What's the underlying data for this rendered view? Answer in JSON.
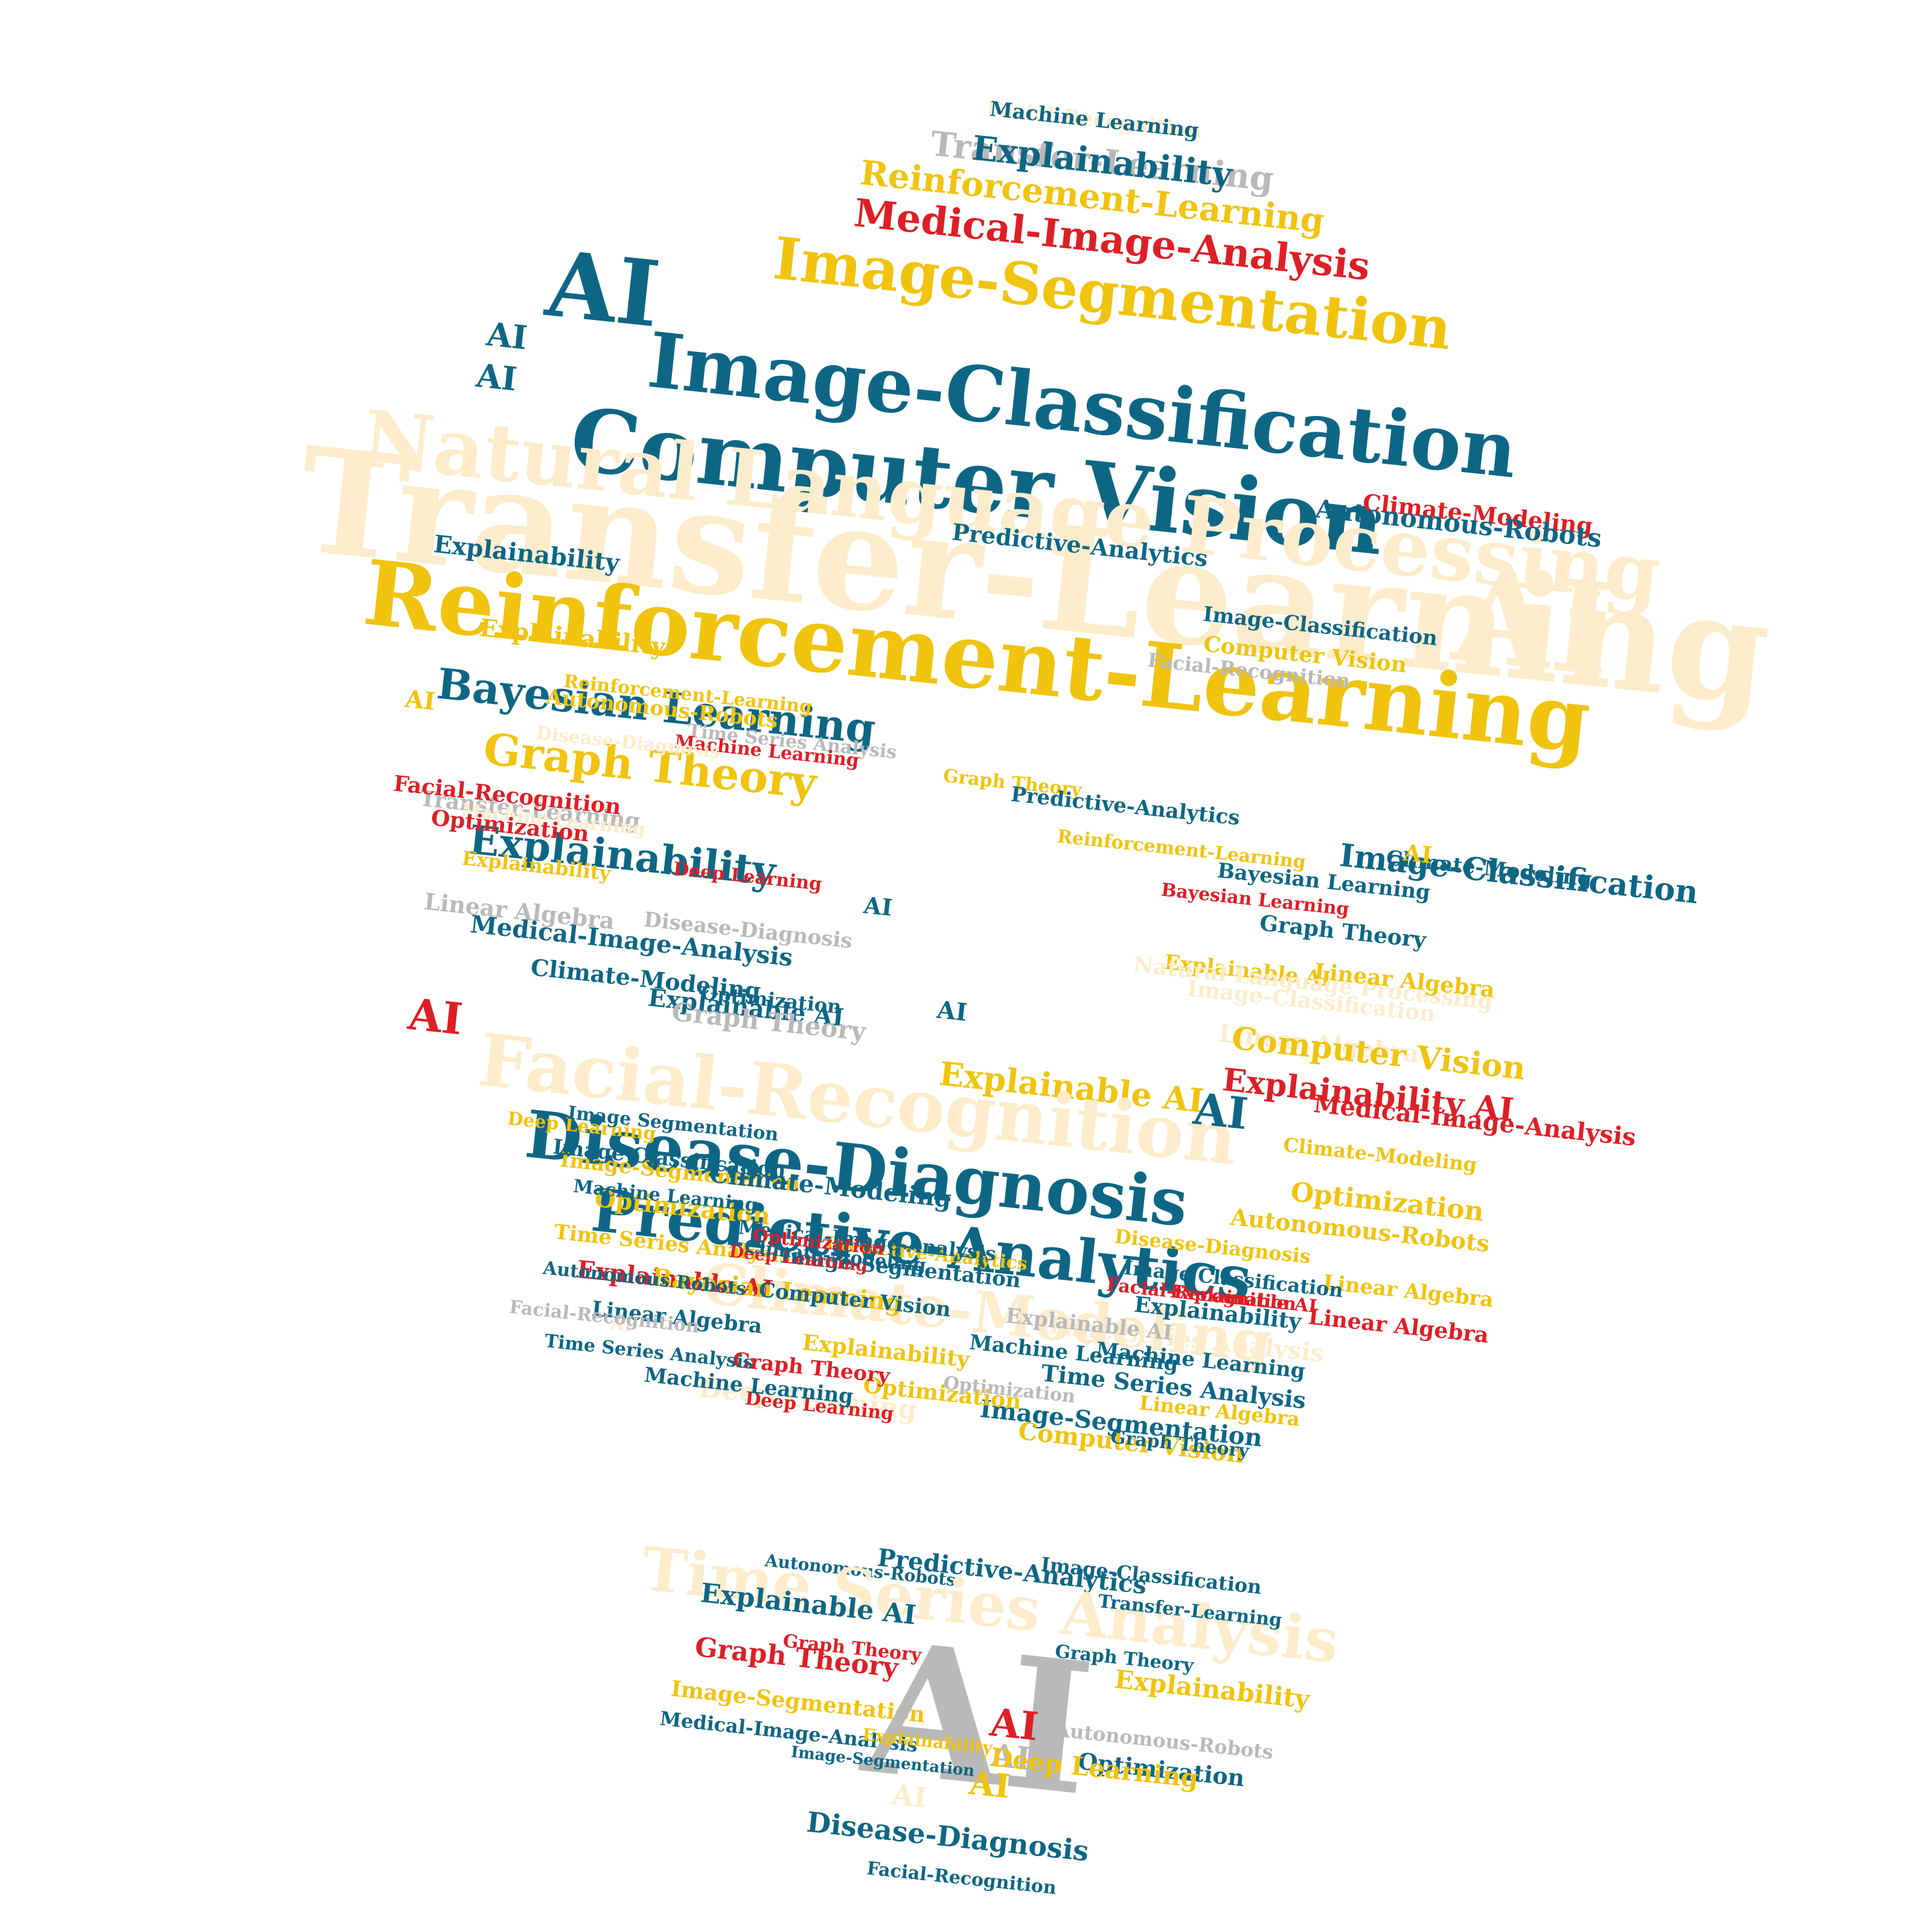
{
  "palette": {
    "teal": "#0e6685",
    "gold": "#f0c30f",
    "red": "#dd1f26",
    "gray": "#b9b9b9",
    "cream": "#fdeccb",
    "background": "#ffffff"
  },
  "bulb_words": [
    {
      "text": "Facial-Recognition",
      "color": "cream"
    },
    {
      "text": "Transfer-Learning",
      "color": "gray"
    },
    {
      "text": "Reinforcement-Learning",
      "color": "gold"
    },
    {
      "text": "Medical-Image-Analysis",
      "color": "red"
    },
    {
      "text": "Image-Segmentation",
      "color": "gold"
    },
    {
      "text": "AI",
      "color": "teal"
    },
    {
      "text": "Image-Classification",
      "color": "teal"
    },
    {
      "text": "AI",
      "color": "teal"
    },
    {
      "text": "AI",
      "color": "teal"
    },
    {
      "text": "Computer Vision",
      "color": "teal"
    },
    {
      "text": "Natural Language Processing",
      "color": "cream"
    },
    {
      "text": "Transfer-Learning",
      "color": "cream"
    },
    {
      "text": "AI",
      "color": "cream"
    },
    {
      "text": "Reinforcement-Learning",
      "color": "gold"
    },
    {
      "text": "Bayesian Learning",
      "color": "teal"
    },
    {
      "text": "Graph Theory",
      "color": "gold"
    },
    {
      "text": "Explainability",
      "color": "teal"
    },
    {
      "text": "Explainable AI",
      "color": "gold"
    },
    {
      "text": "AI",
      "color": "teal"
    },
    {
      "text": "Facial-Recognition",
      "color": "cream"
    },
    {
      "text": "Disease-Diagnosis",
      "color": "teal"
    },
    {
      "text": "Predictive-Analytics",
      "color": "teal"
    },
    {
      "text": "Climate-Modeling",
      "color": "cream"
    },
    {
      "text": "Deep Learning",
      "color": "cream"
    },
    {
      "text": "Image-Segmentation",
      "color": "teal"
    },
    {
      "text": "Computer Vision",
      "color": "gold"
    },
    {
      "text": "Optimization",
      "color": "gold"
    },
    {
      "text": "Deep Learning",
      "color": "red"
    },
    {
      "text": "Machine Learning",
      "color": "teal"
    },
    {
      "text": "Climate-Modeling",
      "color": "red"
    },
    {
      "text": "Autonomous-Robots",
      "color": "teal"
    },
    {
      "text": "Predictive-Analytics",
      "color": "teal"
    },
    {
      "text": "Explainability",
      "color": "teal"
    },
    {
      "text": "Image-Classification",
      "color": "teal"
    },
    {
      "text": "Computer Vision",
      "color": "gold"
    },
    {
      "text": "Facial-Recognition",
      "color": "gray"
    },
    {
      "text": "Graph Theory",
      "color": "gold"
    },
    {
      "text": "Time Series Analysis",
      "color": "gray"
    },
    {
      "text": "Predictive-Analytics",
      "color": "teal"
    },
    {
      "text": "Reinforcement-Learning",
      "color": "gold"
    },
    {
      "text": "Climate-Modeling",
      "color": "teal"
    },
    {
      "text": "Image-Classification",
      "color": "teal"
    },
    {
      "text": "AI",
      "color": "gold"
    },
    {
      "text": "Bayesian Learning",
      "color": "teal"
    },
    {
      "text": "Graph Theory",
      "color": "teal"
    },
    {
      "text": "Bayesian Learning",
      "color": "red"
    },
    {
      "text": "AI",
      "color": "teal"
    },
    {
      "text": "AI",
      "color": "gold"
    },
    {
      "text": "AI",
      "color": "red"
    },
    {
      "text": "AI",
      "color": "teal"
    },
    {
      "text": "Explainable AI",
      "color": "gold"
    },
    {
      "text": "Natural Language Processing",
      "color": "cream"
    },
    {
      "text": "Image-Classification",
      "color": "cream"
    },
    {
      "text": "Linear Algebra",
      "color": "cream"
    },
    {
      "text": "Computer Vision",
      "color": "gold"
    },
    {
      "text": "Linear Algebra",
      "color": "gold"
    },
    {
      "text": "Explainability AI",
      "color": "red"
    },
    {
      "text": "Medical-Image-Analysis",
      "color": "red"
    },
    {
      "text": "Climate-Modeling",
      "color": "gold"
    },
    {
      "text": "Optimization",
      "color": "gold"
    },
    {
      "text": "Autonomous-Robots",
      "color": "gold"
    },
    {
      "text": "Linear Algebra",
      "color": "gold"
    },
    {
      "text": "Linear Algebra",
      "color": "red"
    },
    {
      "text": "Time Series Analysis",
      "color": "cream"
    },
    {
      "text": "Explainability",
      "color": "gold"
    },
    {
      "text": "Transfer-Learning",
      "color": "gray"
    },
    {
      "text": "Facial-Recognition",
      "color": "red"
    },
    {
      "text": "Autonomous-Robots",
      "color": "gold"
    },
    {
      "text": "Reinforcement-Learning",
      "color": "gold"
    },
    {
      "text": "Machine Learning",
      "color": "red"
    },
    {
      "text": "Deep Learning",
      "color": "red"
    },
    {
      "text": "Disease-Diagnosis",
      "color": "gray"
    },
    {
      "text": "Optimization",
      "color": "teal"
    },
    {
      "text": "Explainable AI",
      "color": "teal"
    },
    {
      "text": "Graph Theory",
      "color": "gray"
    },
    {
      "text": "Disease-Diagnosis",
      "color": "cream"
    },
    {
      "text": "Machine Learning",
      "color": "cream"
    },
    {
      "text": "Optimization",
      "color": "red"
    },
    {
      "text": "Explainability",
      "color": "gold"
    },
    {
      "text": "Linear Algebra",
      "color": "gray"
    },
    {
      "text": "Medical-Image-Analysis",
      "color": "teal"
    },
    {
      "text": "Climate-Modeling",
      "color": "teal"
    },
    {
      "text": "Deep Learning",
      "color": "gold"
    },
    {
      "text": "Image-Segmentation",
      "color": "gold"
    },
    {
      "text": "Optimization",
      "color": "gold"
    },
    {
      "text": "Time Series Analysis",
      "color": "gold"
    },
    {
      "text": "Explainable AI",
      "color": "red"
    },
    {
      "text": "Linear Algebra",
      "color": "teal"
    },
    {
      "text": "Bayesian Learning",
      "color": "gold"
    },
    {
      "text": "Graph Theory",
      "color": "red"
    },
    {
      "text": "Optimization",
      "color": "gray"
    },
    {
      "text": "Explainability",
      "color": "gold"
    },
    {
      "text": "Climate-Modeling",
      "color": "teal"
    },
    {
      "text": "Image-Segmentation",
      "color": "teal"
    },
    {
      "text": "Predictive-Analytics",
      "color": "gold"
    },
    {
      "text": "Machine Learning",
      "color": "teal"
    },
    {
      "text": "Time Series Analysis",
      "color": "teal"
    },
    {
      "text": "Image Classification",
      "color": "teal"
    },
    {
      "text": "Explainable AI",
      "color": "red"
    },
    {
      "text": "Machine Learning",
      "color": "teal"
    },
    {
      "text": "Explainability",
      "color": "teal"
    },
    {
      "text": "Facial-Recognition",
      "color": "red"
    },
    {
      "text": "Linear Algebra",
      "color": "gold"
    },
    {
      "text": "Graph Theory",
      "color": "teal"
    },
    {
      "text": "Explainable AI",
      "color": "gray"
    },
    {
      "text": "Medical-Image-Analysis",
      "color": "teal"
    },
    {
      "text": "Deep Learning",
      "color": "red"
    },
    {
      "text": "Optimization",
      "color": "red"
    },
    {
      "text": "Climate-Modeling",
      "color": "teal"
    },
    {
      "text": "Computer Vision",
      "color": "teal"
    },
    {
      "text": "Disease-Diagnosis",
      "color": "gold"
    },
    {
      "text": "Image Segmentation",
      "color": "teal"
    },
    {
      "text": "Image Classification",
      "color": "teal"
    },
    {
      "text": "Machine Learning",
      "color": "teal"
    },
    {
      "text": "Autonomous Robots",
      "color": "teal"
    },
    {
      "text": "AI",
      "color": "cream"
    },
    {
      "text": "Time Series Analysis",
      "color": "teal"
    },
    {
      "text": "Facial-Recognition",
      "color": "gray"
    },
    {
      "text": "Machine Learning",
      "color": "teal"
    },
    {
      "text": "Explainability",
      "color": "teal"
    }
  ],
  "base_words": [
    {
      "text": "Autonomous-Robots",
      "color": "teal"
    },
    {
      "text": "Predictive-Analytics",
      "color": "teal"
    },
    {
      "text": "Image-Classification",
      "color": "teal"
    },
    {
      "text": "Time Series Analysis",
      "color": "cream"
    },
    {
      "text": "Transfer-Learning",
      "color": "teal"
    },
    {
      "text": "Explainable AI",
      "color": "teal"
    },
    {
      "text": "Graph Theory",
      "color": "red"
    },
    {
      "text": "Explainability",
      "color": "gold"
    },
    {
      "text": "Graph Theory",
      "color": "red"
    },
    {
      "text": "Image-Segmentation",
      "color": "gold"
    },
    {
      "text": "Autonomous-Robots",
      "color": "gray"
    },
    {
      "text": "Medical-Image-Analysis",
      "color": "teal"
    },
    {
      "text": "Optimization",
      "color": "teal"
    },
    {
      "text": "AI",
      "color": "gray"
    },
    {
      "text": "AI",
      "color": "red"
    },
    {
      "text": "AI",
      "color": "gray"
    },
    {
      "text": "AI",
      "color": "gold"
    },
    {
      "text": "AI",
      "color": "cream"
    },
    {
      "text": "Deep Learning",
      "color": "gold"
    },
    {
      "text": "Disease-Diagnosis",
      "color": "teal"
    },
    {
      "text": "Facial-Recognition",
      "color": "teal"
    },
    {
      "text": "Graph Theory",
      "color": "teal"
    },
    {
      "text": "Image-Segmentation",
      "color": "teal"
    },
    {
      "text": "Explainability",
      "color": "gold"
    }
  ]
}
